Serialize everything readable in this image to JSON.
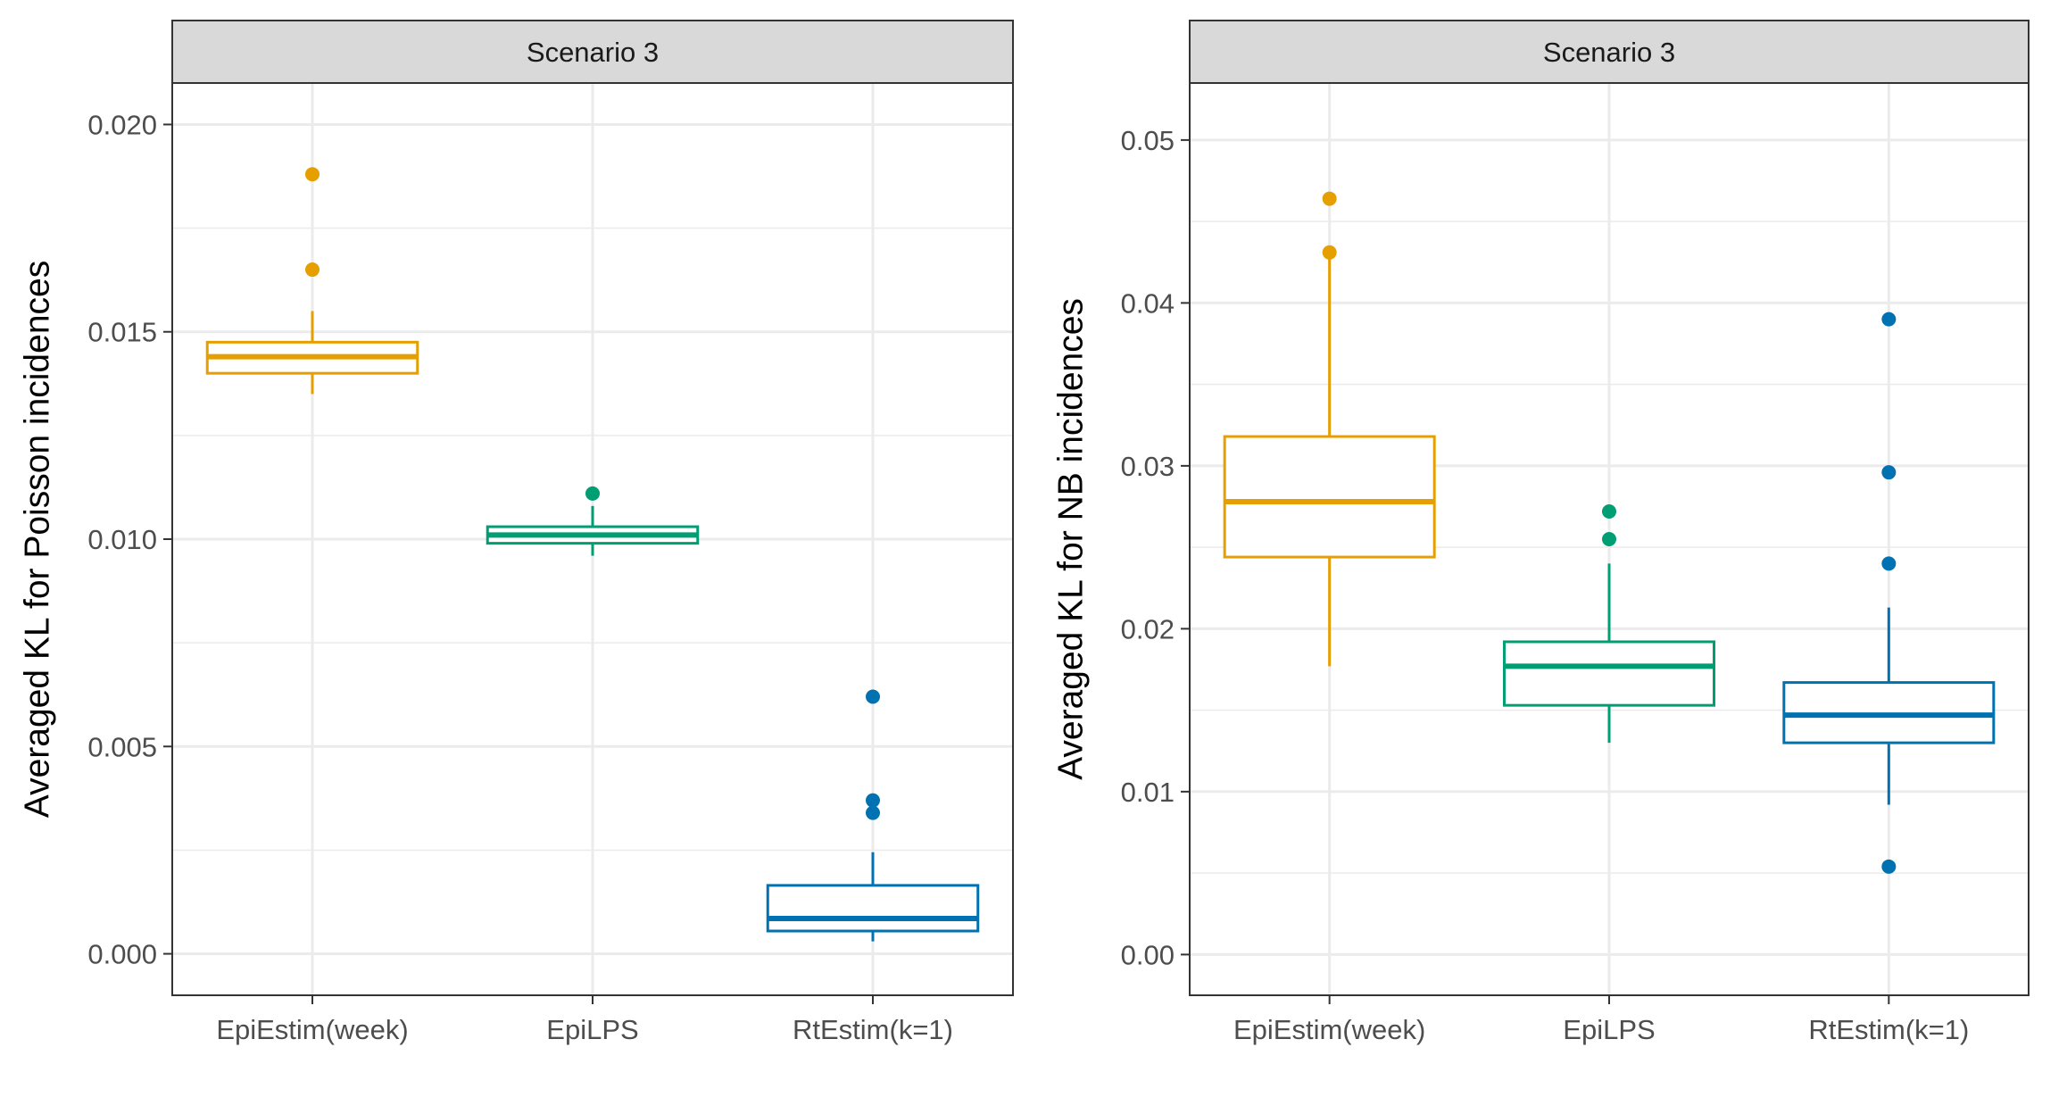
{
  "colors": {
    "EpiEstim(week)": "#E69F00",
    "EpiLPS": "#009E73",
    "RtEstim(k=1)": "#0072B2",
    "strip_fill": "#D9D9D9",
    "grid": "#EBEBEB",
    "frame": "#333333"
  },
  "chart_data": [
    {
      "type": "boxplot",
      "strip_title": "Scenario 3",
      "ylabel": "Averaged KL for Poisson incidences",
      "xlabel": "",
      "ylim": [
        -0.001,
        0.021
      ],
      "y_ticks": [
        0.0,
        0.005,
        0.01,
        0.015,
        0.02
      ],
      "y_tick_labels": [
        "0.000",
        "0.005",
        "0.010",
        "0.015",
        "0.020"
      ],
      "grid": true,
      "categories": [
        "EpiEstim(week)",
        "EpiLPS",
        "RtEstim(k=1)"
      ],
      "boxes": [
        {
          "category": "EpiEstim(week)",
          "whisker_low": 0.0135,
          "q1": 0.014,
          "median": 0.0144,
          "q3": 0.01475,
          "whisker_high": 0.0155,
          "outliers": [
            0.0188,
            0.0165
          ]
        },
        {
          "category": "EpiLPS",
          "whisker_low": 0.0096,
          "q1": 0.0099,
          "median": 0.0101,
          "q3": 0.0103,
          "whisker_high": 0.0108,
          "outliers": [
            0.0111
          ]
        },
        {
          "category": "RtEstim(k=1)",
          "whisker_low": 0.0003,
          "q1": 0.00055,
          "median": 0.00085,
          "q3": 0.00165,
          "whisker_high": 0.00245,
          "outliers": [
            0.0062,
            0.0037,
            0.0034
          ]
        }
      ]
    },
    {
      "type": "boxplot",
      "strip_title": "Scenario 3",
      "ylabel": "Averaged KL for NB incidences",
      "xlabel": "",
      "ylim": [
        -0.0025,
        0.0535
      ],
      "y_ticks": [
        0.0,
        0.01,
        0.02,
        0.03,
        0.04,
        0.05
      ],
      "y_tick_labels": [
        "0.00",
        "0.01",
        "0.02",
        "0.03",
        "0.04",
        "0.05"
      ],
      "grid": true,
      "categories": [
        "EpiEstim(week)",
        "EpiLPS",
        "RtEstim(k=1)"
      ],
      "boxes": [
        {
          "category": "EpiEstim(week)",
          "whisker_low": 0.0177,
          "q1": 0.0244,
          "median": 0.0278,
          "q3": 0.0318,
          "whisker_high": 0.0428,
          "outliers": [
            0.0464,
            0.0431
          ]
        },
        {
          "category": "EpiLPS",
          "whisker_low": 0.013,
          "q1": 0.0153,
          "median": 0.0177,
          "q3": 0.0192,
          "whisker_high": 0.024,
          "outliers": [
            0.0272,
            0.0255
          ]
        },
        {
          "category": "RtEstim(k=1)",
          "whisker_low": 0.0092,
          "q1": 0.013,
          "median": 0.0147,
          "q3": 0.0167,
          "whisker_high": 0.0213,
          "outliers": [
            0.039,
            0.0296,
            0.024,
            0.0054
          ]
        }
      ]
    }
  ]
}
